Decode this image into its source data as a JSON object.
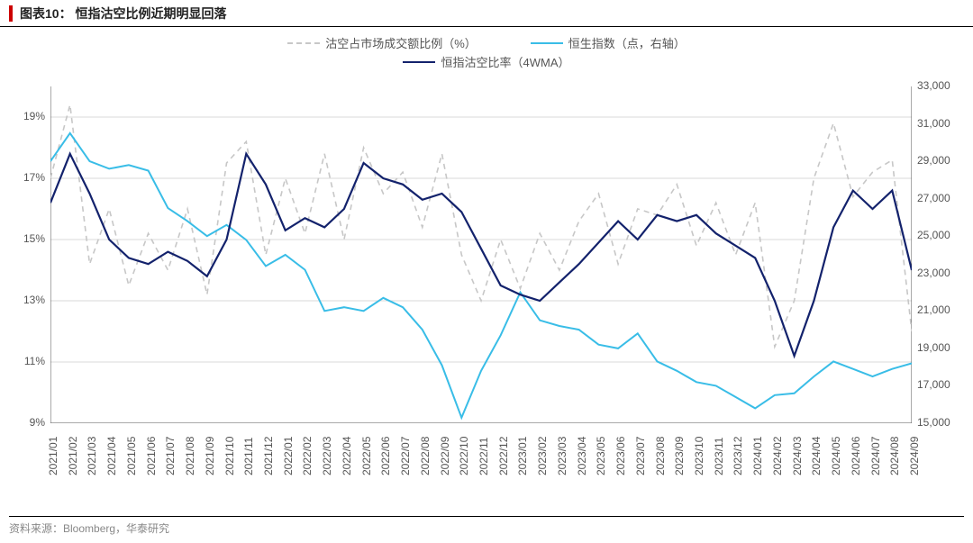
{
  "title": "图表10： 恒指沽空比例近期明显回落",
  "footer": "资料来源：Bloomberg，华泰研究",
  "legend": {
    "series1": "沽空占市场成交额比例（%）",
    "series2": "恒生指数（点，右轴）",
    "series3": "恒指沽空比率（4WMA）"
  },
  "chart": {
    "type": "line",
    "background_color": "#ffffff",
    "grid_color": "#d9d9d9",
    "axis_color": "#555555",
    "label_fontsize": 12,
    "title_fontsize": 14,
    "y_left": {
      "min": 9,
      "max": 20,
      "ticks": [
        9,
        11,
        13,
        15,
        17,
        19
      ],
      "suffix": "%"
    },
    "y_right": {
      "min": 15000,
      "max": 33000,
      "ticks": [
        15000,
        17000,
        19000,
        21000,
        23000,
        25000,
        27000,
        29000,
        31000,
        33000
      ]
    },
    "x_labels": [
      "2021/01",
      "2021/02",
      "2021/03",
      "2021/04",
      "2021/05",
      "2021/06",
      "2021/07",
      "2021/08",
      "2021/09",
      "2021/10",
      "2021/11",
      "2021/12",
      "2022/01",
      "2022/02",
      "2022/03",
      "2022/04",
      "2022/05",
      "2022/06",
      "2022/07",
      "2022/08",
      "2022/09",
      "2022/10",
      "2022/11",
      "2022/12",
      "2023/01",
      "2023/02",
      "2023/03",
      "2023/04",
      "2023/05",
      "2023/06",
      "2023/07",
      "2023/08",
      "2023/09",
      "2023/10",
      "2023/11",
      "2023/12",
      "2024/01",
      "2024/02",
      "2024/03",
      "2024/04",
      "2024/05",
      "2024/06",
      "2024/07",
      "2024/08",
      "2024/09"
    ],
    "series": {
      "short_ratio": {
        "color": "#c7c7c7",
        "width": 1.6,
        "dash": "6,5",
        "axis": "left",
        "data": [
          17.0,
          19.4,
          14.2,
          16.0,
          13.5,
          15.2,
          14.0,
          16.0,
          13.2,
          17.5,
          18.2,
          14.5,
          17.0,
          15.2,
          17.8,
          15.0,
          18.0,
          16.5,
          17.2,
          15.4,
          17.8,
          14.5,
          13.0,
          15.0,
          13.4,
          15.2,
          14.0,
          15.6,
          16.5,
          14.2,
          16.0,
          15.8,
          16.8,
          14.8,
          16.2,
          14.5,
          16.2,
          11.5,
          13.0,
          17.0,
          18.8,
          16.4,
          17.2,
          17.6,
          12.0
        ]
      },
      "hsi": {
        "color": "#39bde7",
        "width": 2.0,
        "dash": "",
        "axis": "right",
        "data": [
          29000,
          30500,
          29000,
          28600,
          28800,
          28500,
          26500,
          25800,
          25000,
          25600,
          24800,
          23400,
          24000,
          23200,
          21000,
          21200,
          21000,
          21700,
          21200,
          20000,
          18100,
          15300,
          17800,
          19700,
          22000,
          20500,
          20200,
          20000,
          19200,
          19000,
          19800,
          18300,
          17800,
          17200,
          17000,
          16400,
          15800,
          16500,
          16600,
          17500,
          18300,
          17900,
          17500,
          17900,
          18200
        ]
      },
      "short_4wma": {
        "color": "#13226c",
        "width": 2.2,
        "dash": "",
        "axis": "left",
        "data": [
          16.2,
          17.8,
          16.5,
          15.0,
          14.4,
          14.2,
          14.6,
          14.3,
          13.8,
          15.0,
          17.8,
          16.8,
          15.3,
          15.7,
          15.4,
          16.0,
          17.5,
          17.0,
          16.8,
          16.3,
          16.5,
          15.9,
          14.7,
          13.5,
          13.2,
          13.0,
          13.6,
          14.2,
          14.9,
          15.6,
          15.0,
          15.8,
          15.6,
          15.8,
          15.2,
          14.8,
          14.4,
          13.0,
          11.2,
          13.0,
          15.4,
          16.6,
          16.0,
          16.6,
          14.0
        ]
      }
    }
  }
}
